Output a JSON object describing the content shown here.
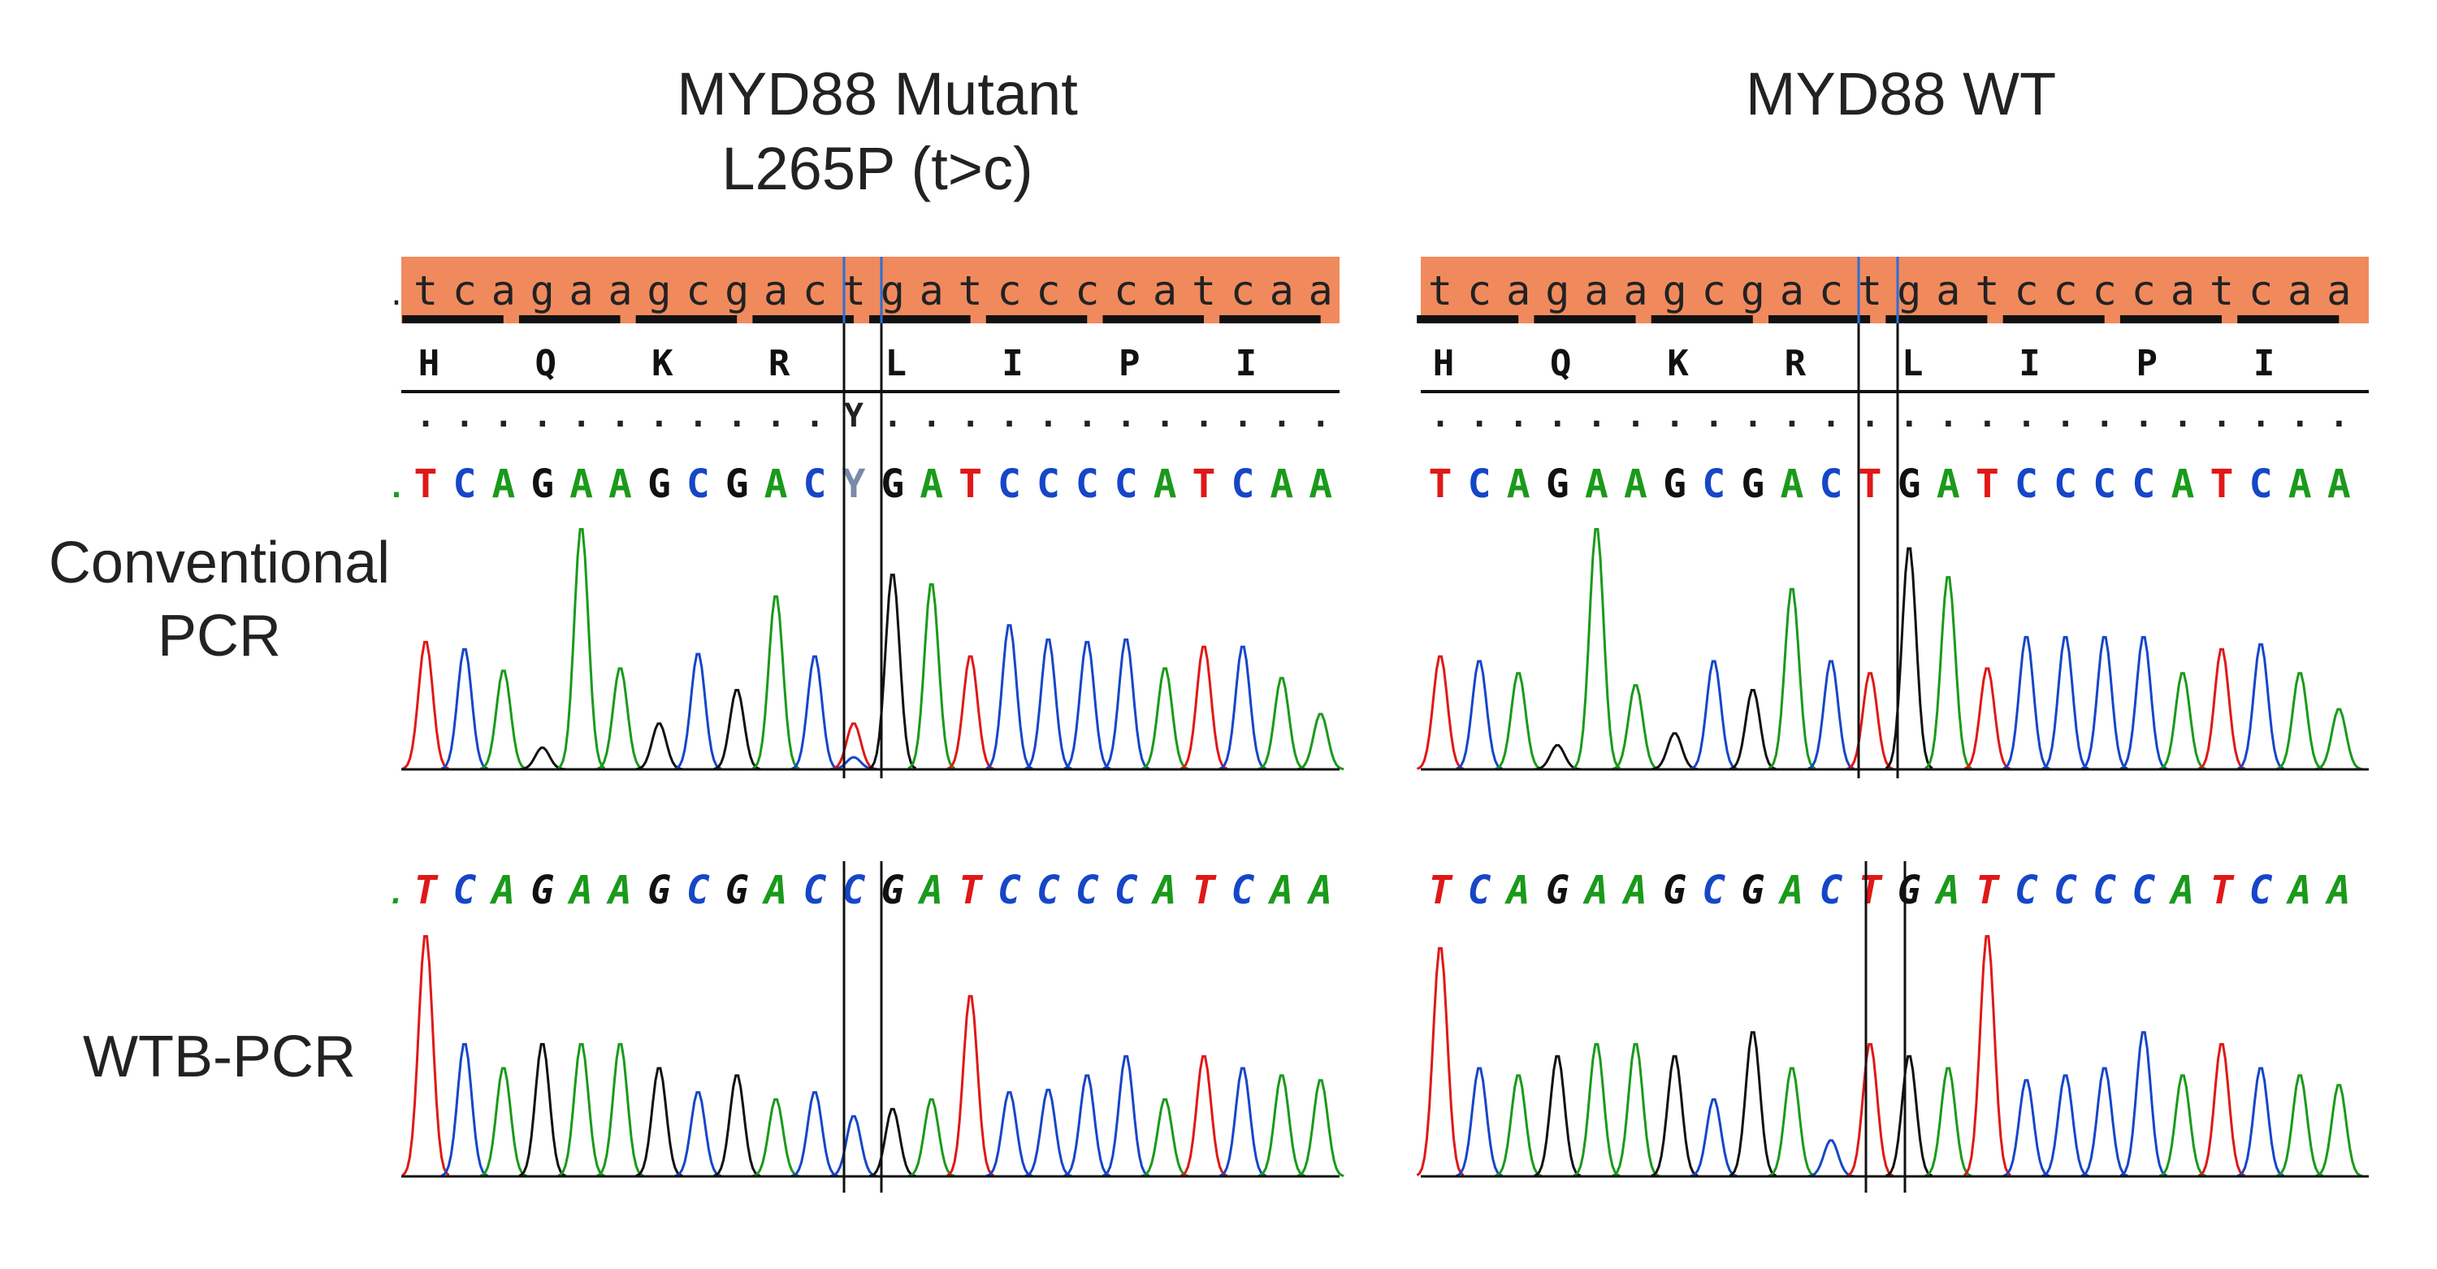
{
  "titles": {
    "mutant_line1": "MYD88 Mutant",
    "mutant_line2": "L265P (t>c)",
    "wt": "MYD88 WT"
  },
  "row_labels": {
    "conventional_line1": "Conventional",
    "conventional_line2": "PCR",
    "wtb": "WTB-PCR"
  },
  "colors": {
    "A": "#1a9a1a",
    "C": "#1646c8",
    "G": "#111111",
    "T": "#e01818",
    "reference_bar": "#f08a5d",
    "ambiguous": "#7a8aa8"
  },
  "panels": {
    "mutant": {
      "reference": ".tcagaagcgactgatccccatcaa",
      "amino_acids": [
        "H",
        "Q",
        "K",
        "R",
        "L",
        "I",
        "P",
        "I"
      ],
      "consensus": "...........Y............",
      "conventional": {
        "calls": ".TCAGAAGCGACYGATCCCCATCAA",
        "peak_heights": [
          0.53,
          0.5,
          0.41,
          0.09,
          1.0,
          0.42,
          0.19,
          0.48,
          0.33,
          0.72,
          0.47,
          0.19,
          0.81,
          0.77,
          0.47,
          0.6,
          0.54,
          0.53,
          0.54,
          0.42,
          0.51,
          0.51,
          0.38,
          0.23
        ],
        "mixed_peaks": {
          "index": 11,
          "peaks": [
            [
              "T",
              0.19
            ],
            [
              "C",
              0.05
            ]
          ]
        }
      },
      "wtb": {
        "calls": ".TCAGAAGCGACCGATCCCCATCAA",
        "peak_heights": [
          1.0,
          0.55,
          0.45,
          0.55,
          0.55,
          0.55,
          0.45,
          0.35,
          0.42,
          0.32,
          0.35,
          0.25,
          0.28,
          0.32,
          0.75,
          0.35,
          0.36,
          0.42,
          0.5,
          0.32,
          0.5,
          0.45,
          0.42,
          0.4
        ]
      }
    },
    "wt": {
      "reference": "tcagaagcgactgatccccatcaa",
      "amino_acids": [
        "H",
        "Q",
        "K",
        "R",
        "L",
        "I",
        "P",
        "I"
      ],
      "consensus": "........................",
      "conventional": {
        "calls": "TCAGAAGCGACTGATCCCCATCAA",
        "peak_heights": [
          0.47,
          0.45,
          0.4,
          0.1,
          1.0,
          0.35,
          0.15,
          0.45,
          0.33,
          0.75,
          0.45,
          0.4,
          0.92,
          0.8,
          0.42,
          0.55,
          0.55,
          0.55,
          0.55,
          0.4,
          0.5,
          0.52,
          0.4,
          0.25
        ]
      },
      "wtb": {
        "calls": "TCAGAAGCGACTGATCCCCATCAA",
        "peak_heights": [
          0.95,
          0.45,
          0.42,
          0.5,
          0.55,
          0.55,
          0.5,
          0.32,
          0.6,
          0.45,
          0.15,
          0.55,
          0.5,
          0.45,
          1.0,
          0.4,
          0.42,
          0.45,
          0.6,
          0.42,
          0.55,
          0.45,
          0.42,
          0.38
        ]
      }
    }
  }
}
